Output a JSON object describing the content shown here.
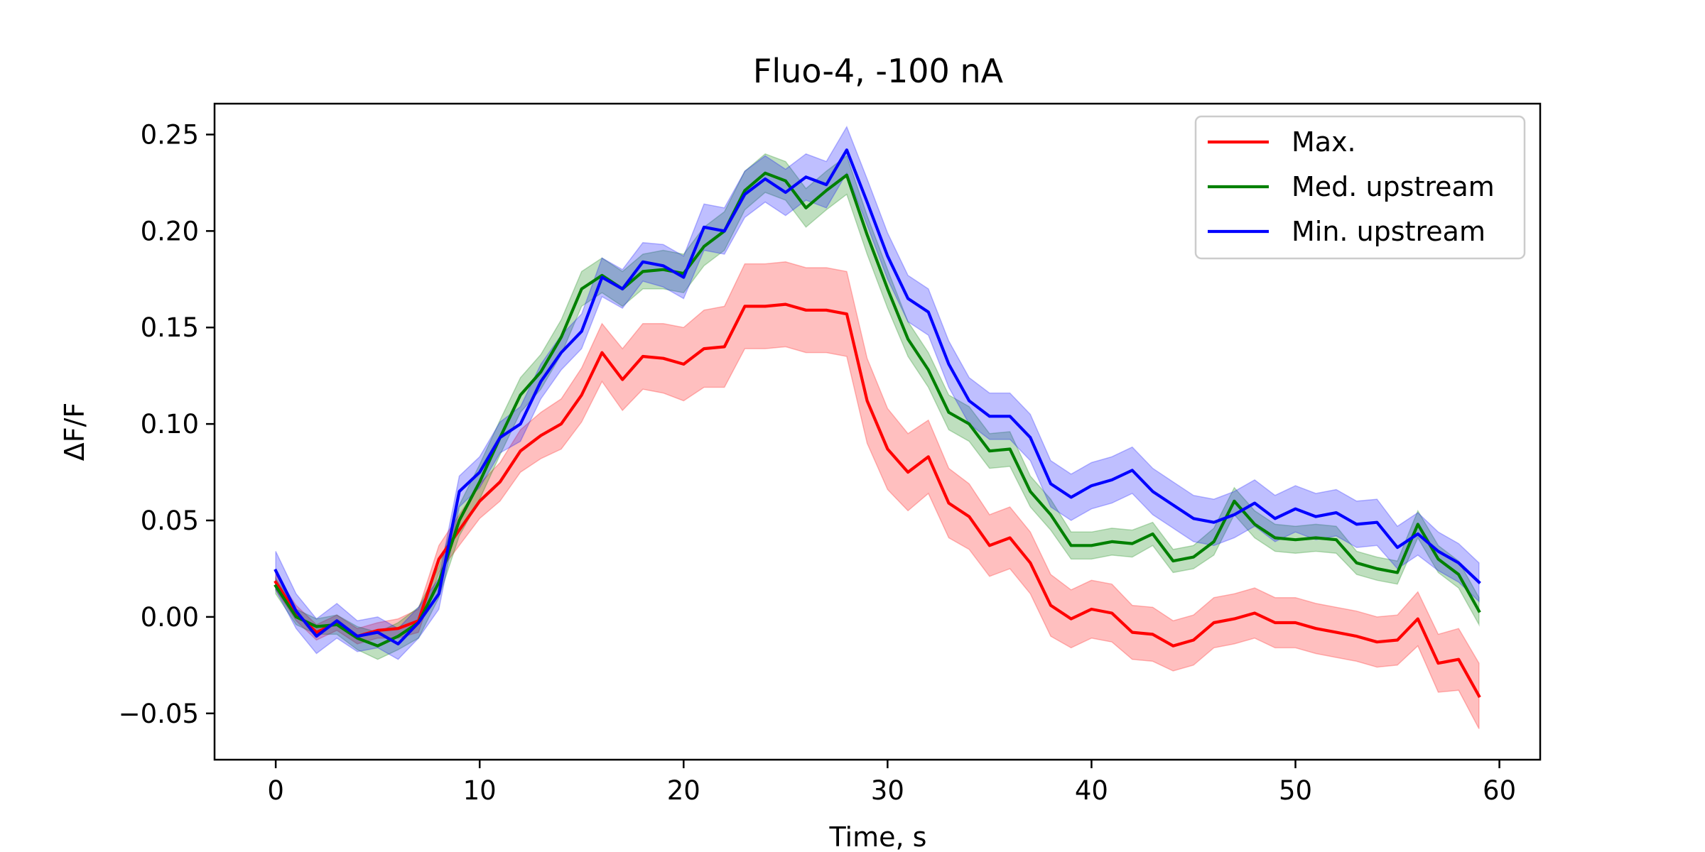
{
  "chart_data": {
    "type": "line",
    "title": "Fluo-4, -100 nA",
    "xlabel": "Time, s",
    "ylabel": "ΔF/F",
    "xlim": [
      -3,
      62
    ],
    "ylim": [
      -0.074,
      0.266
    ],
    "x_ticks": [
      0,
      10,
      20,
      30,
      40,
      50,
      60
    ],
    "x_tick_labels": [
      "0",
      "10",
      "20",
      "30",
      "40",
      "50",
      "60"
    ],
    "y_ticks": [
      -0.05,
      0.0,
      0.05,
      0.1,
      0.15,
      0.2,
      0.25
    ],
    "y_tick_labels": [
      "−0.05",
      "0.00",
      "0.05",
      "0.10",
      "0.15",
      "0.20",
      "0.25"
    ],
    "grid": false,
    "legend_position": "top-right",
    "x": [
      0,
      1,
      2,
      3,
      4,
      5,
      6,
      7,
      8,
      9,
      10,
      11,
      12,
      13,
      14,
      15,
      16,
      17,
      18,
      19,
      20,
      21,
      22,
      23,
      24,
      25,
      26,
      27,
      28,
      29,
      30,
      31,
      32,
      33,
      34,
      35,
      36,
      37,
      38,
      39,
      40,
      41,
      42,
      43,
      44,
      45,
      46,
      47,
      48,
      49,
      50,
      51,
      52,
      53,
      54,
      55,
      56,
      57,
      58,
      59
    ],
    "series": [
      {
        "name": "Max.",
        "color": "#ff0000",
        "values": [
          0.018,
          0.002,
          -0.008,
          -0.003,
          -0.01,
          -0.007,
          -0.006,
          -0.002,
          0.03,
          0.045,
          0.06,
          0.07,
          0.086,
          0.094,
          0.1,
          0.115,
          0.137,
          0.123,
          0.135,
          0.134,
          0.131,
          0.139,
          0.14,
          0.161,
          0.161,
          0.162,
          0.159,
          0.159,
          0.157,
          0.112,
          0.087,
          0.075,
          0.083,
          0.059,
          0.052,
          0.037,
          0.041,
          0.028,
          0.006,
          -0.001,
          0.004,
          0.002,
          -0.008,
          -0.009,
          -0.015,
          -0.012,
          -0.003,
          -0.001,
          0.002,
          -0.003,
          -0.003,
          -0.006,
          -0.008,
          -0.01,
          -0.013,
          -0.012,
          -0.001,
          -0.024,
          -0.022,
          -0.041
        ],
        "spread": [
          0.004,
          0.004,
          0.004,
          0.004,
          0.004,
          0.004,
          0.005,
          0.006,
          0.007,
          0.008,
          0.009,
          0.01,
          0.011,
          0.012,
          0.013,
          0.014,
          0.015,
          0.016,
          0.017,
          0.018,
          0.019,
          0.02,
          0.021,
          0.022,
          0.022,
          0.022,
          0.022,
          0.022,
          0.022,
          0.022,
          0.021,
          0.02,
          0.019,
          0.018,
          0.017,
          0.016,
          0.016,
          0.016,
          0.016,
          0.015,
          0.015,
          0.015,
          0.014,
          0.014,
          0.013,
          0.013,
          0.013,
          0.013,
          0.013,
          0.013,
          0.013,
          0.013,
          0.013,
          0.013,
          0.013,
          0.013,
          0.014,
          0.015,
          0.016,
          0.017
        ]
      },
      {
        "name": "Med. upstream",
        "color": "#008000",
        "values": [
          0.016,
          0.0,
          -0.005,
          -0.004,
          -0.011,
          -0.015,
          -0.01,
          -0.003,
          0.018,
          0.05,
          0.07,
          0.093,
          0.115,
          0.127,
          0.145,
          0.17,
          0.177,
          0.17,
          0.179,
          0.18,
          0.178,
          0.192,
          0.2,
          0.221,
          0.23,
          0.226,
          0.212,
          0.221,
          0.229,
          0.198,
          0.17,
          0.144,
          0.128,
          0.106,
          0.1,
          0.086,
          0.087,
          0.065,
          0.053,
          0.037,
          0.037,
          0.039,
          0.038,
          0.043,
          0.029,
          0.031,
          0.039,
          0.06,
          0.048,
          0.041,
          0.04,
          0.041,
          0.04,
          0.028,
          0.025,
          0.023,
          0.048,
          0.03,
          0.022,
          0.003
        ],
        "spread": [
          0.004,
          0.004,
          0.004,
          0.005,
          0.006,
          0.007,
          0.007,
          0.008,
          0.008,
          0.008,
          0.009,
          0.009,
          0.009,
          0.009,
          0.009,
          0.009,
          0.009,
          0.009,
          0.009,
          0.01,
          0.01,
          0.01,
          0.01,
          0.01,
          0.01,
          0.01,
          0.01,
          0.01,
          0.01,
          0.01,
          0.01,
          0.009,
          0.009,
          0.009,
          0.009,
          0.009,
          0.009,
          0.008,
          0.008,
          0.007,
          0.007,
          0.007,
          0.007,
          0.006,
          0.006,
          0.006,
          0.007,
          0.007,
          0.007,
          0.007,
          0.007,
          0.007,
          0.007,
          0.006,
          0.006,
          0.006,
          0.007,
          0.007,
          0.007,
          0.007
        ]
      },
      {
        "name": "Min. upstream",
        "color": "#0000ff",
        "values": [
          0.024,
          0.003,
          -0.01,
          -0.002,
          -0.01,
          -0.008,
          -0.014,
          -0.003,
          0.012,
          0.065,
          0.075,
          0.093,
          0.1,
          0.122,
          0.137,
          0.148,
          0.176,
          0.17,
          0.184,
          0.182,
          0.176,
          0.202,
          0.2,
          0.219,
          0.227,
          0.22,
          0.228,
          0.224,
          0.242,
          0.215,
          0.187,
          0.165,
          0.158,
          0.131,
          0.112,
          0.104,
          0.104,
          0.093,
          0.069,
          0.062,
          0.068,
          0.071,
          0.076,
          0.065,
          0.058,
          0.051,
          0.049,
          0.053,
          0.059,
          0.051,
          0.056,
          0.052,
          0.054,
          0.048,
          0.049,
          0.036,
          0.043,
          0.034,
          0.028,
          0.018
        ],
        "spread": [
          0.01,
          0.009,
          0.009,
          0.009,
          0.008,
          0.008,
          0.008,
          0.008,
          0.008,
          0.008,
          0.008,
          0.008,
          0.009,
          0.009,
          0.009,
          0.009,
          0.01,
          0.01,
          0.01,
          0.011,
          0.011,
          0.012,
          0.012,
          0.012,
          0.012,
          0.012,
          0.012,
          0.012,
          0.012,
          0.012,
          0.012,
          0.012,
          0.012,
          0.012,
          0.012,
          0.012,
          0.012,
          0.012,
          0.012,
          0.012,
          0.012,
          0.012,
          0.012,
          0.012,
          0.012,
          0.012,
          0.012,
          0.012,
          0.012,
          0.012,
          0.012,
          0.012,
          0.012,
          0.012,
          0.012,
          0.011,
          0.011,
          0.01,
          0.01,
          0.01
        ]
      }
    ]
  }
}
